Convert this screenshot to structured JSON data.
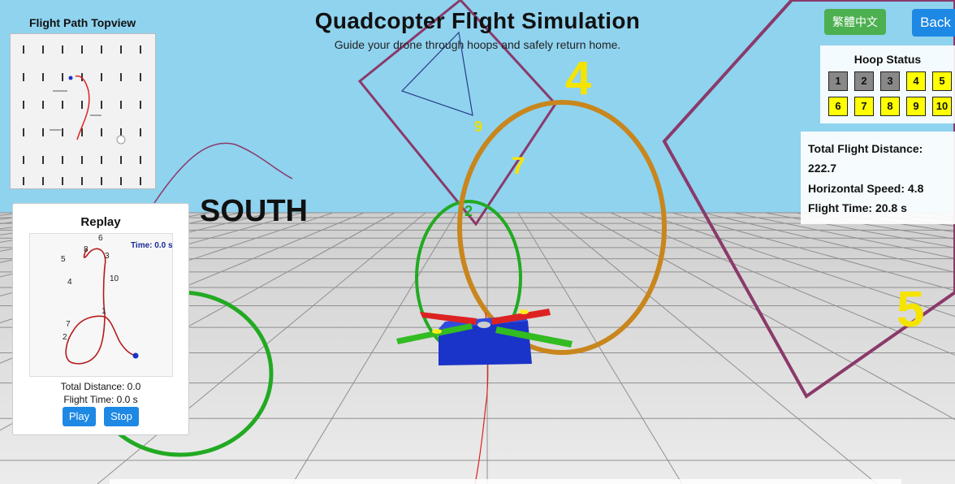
{
  "header": {
    "title": "Quadcopter Flight Simulation",
    "subtitle": "Guide your drone through hoops and safely return home."
  },
  "buttons": {
    "language": "繁體中文",
    "back": "Back"
  },
  "topview": {
    "label": "Flight Path Topview"
  },
  "scene_labels": {
    "south": "SOUTH",
    "hoop_4": "4",
    "hoop_5": "5",
    "hoop_7": "7",
    "hoop_9": "9",
    "hoop_2": "2"
  },
  "hoop_status": {
    "title": "Hoop Status",
    "hoops": [
      {
        "label": "1",
        "state": "done"
      },
      {
        "label": "2",
        "state": "done"
      },
      {
        "label": "3",
        "state": "done"
      },
      {
        "label": "4",
        "state": "pending"
      },
      {
        "label": "5",
        "state": "pending"
      },
      {
        "label": "6",
        "state": "pending"
      },
      {
        "label": "7",
        "state": "pending"
      },
      {
        "label": "8",
        "state": "pending"
      },
      {
        "label": "9",
        "state": "pending"
      },
      {
        "label": "10",
        "state": "pending"
      }
    ]
  },
  "stats": {
    "distance_label": "Total Flight Distance:",
    "distance_value": "222.7",
    "speed": "Horizontal Speed: 4.8",
    "time": "Flight Time: 20.8 s"
  },
  "replay": {
    "title": "Replay",
    "time_label": "Time: 0.0 s",
    "hoop_labels": [
      "6",
      "5",
      "8",
      "3",
      "4",
      "10",
      "1",
      "7",
      "2"
    ],
    "total_distance": "Total Distance: 0.0",
    "flight_time": "Flight Time: 0.0 s",
    "play": "Play",
    "stop": "Stop"
  },
  "colors": {
    "sky": "#8fd3ef",
    "floor": "#dcdcdc",
    "hoop_done": "#888888",
    "hoop_pending": "#ffff00",
    "ring_orange": "#c8861d",
    "ring_green": "#22aa22",
    "frame_purple": "#8a3a6a",
    "drone_body": "#1a33c8",
    "button_blue": "#1e88e5",
    "button_green": "#4caf50",
    "path_red": "#cc2222"
  }
}
